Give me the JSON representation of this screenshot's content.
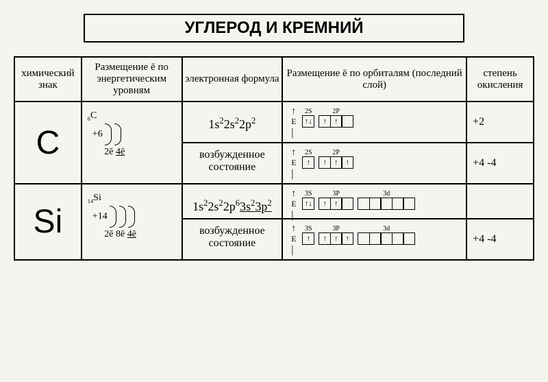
{
  "title": "УГЛЕРОД И КРЕМНИЙ",
  "headers": {
    "col1": "химический знак",
    "col2": "Размещение ē по энергетическим уровням",
    "col3": "электронная формула",
    "col4": "Размещение ē по орбиталям (последний слой)",
    "col5": "степень окисления"
  },
  "rows": [
    {
      "symbol": "C",
      "mass": "6",
      "element": "C",
      "charge": "+6",
      "shells": [
        "2ē",
        "4ē"
      ],
      "formula_parts": [
        "1s",
        "2",
        "2s",
        "2",
        "2p",
        "2"
      ],
      "excited_label": "возбужденное состояние",
      "orbital_ground": {
        "axis": "E",
        "groups": [
          {
            "label": "2S",
            "boxes": [
              "↑↓"
            ]
          },
          {
            "label": "2P",
            "boxes": [
              "↑",
              "↑",
              ""
            ]
          }
        ]
      },
      "orbital_excited": {
        "axis": "E",
        "groups": [
          {
            "label": "2S",
            "boxes": [
              "↑"
            ]
          },
          {
            "label": "2P",
            "boxes": [
              "↑",
              "↑",
              "↑"
            ]
          }
        ]
      },
      "oxidation_ground": "+2",
      "oxidation_excited": "+4  -4"
    },
    {
      "symbol": "Si",
      "mass": "14",
      "element": "Si",
      "charge": "+14",
      "shells": [
        "2ē",
        "8ē",
        "4ē"
      ],
      "formula_parts": [
        "1s",
        "2",
        "2s",
        "2",
        "2p",
        "6",
        "3s",
        "2",
        "3p",
        "2"
      ],
      "excited_label": "возбужденное состояние",
      "orbital_ground": {
        "axis": "E",
        "groups": [
          {
            "label": "3S",
            "boxes": [
              "↑↓"
            ]
          },
          {
            "label": "3P",
            "boxes": [
              "↑",
              "↑",
              ""
            ]
          },
          {
            "label": "3d",
            "boxes": [
              "",
              "",
              "",
              "",
              ""
            ]
          }
        ]
      },
      "orbital_excited": {
        "axis": "E",
        "groups": [
          {
            "label": "3S",
            "boxes": [
              "↑"
            ]
          },
          {
            "label": "3P",
            "boxes": [
              "↑",
              "↑",
              "↑"
            ]
          },
          {
            "label": "3d",
            "boxes": [
              "",
              "",
              "",
              "",
              ""
            ]
          }
        ]
      },
      "oxidation_ground": "",
      "oxidation_excited": "+4  -4"
    }
  ],
  "colors": {
    "border": "#000000",
    "background": "#f5f5f0",
    "text": "#000000"
  }
}
